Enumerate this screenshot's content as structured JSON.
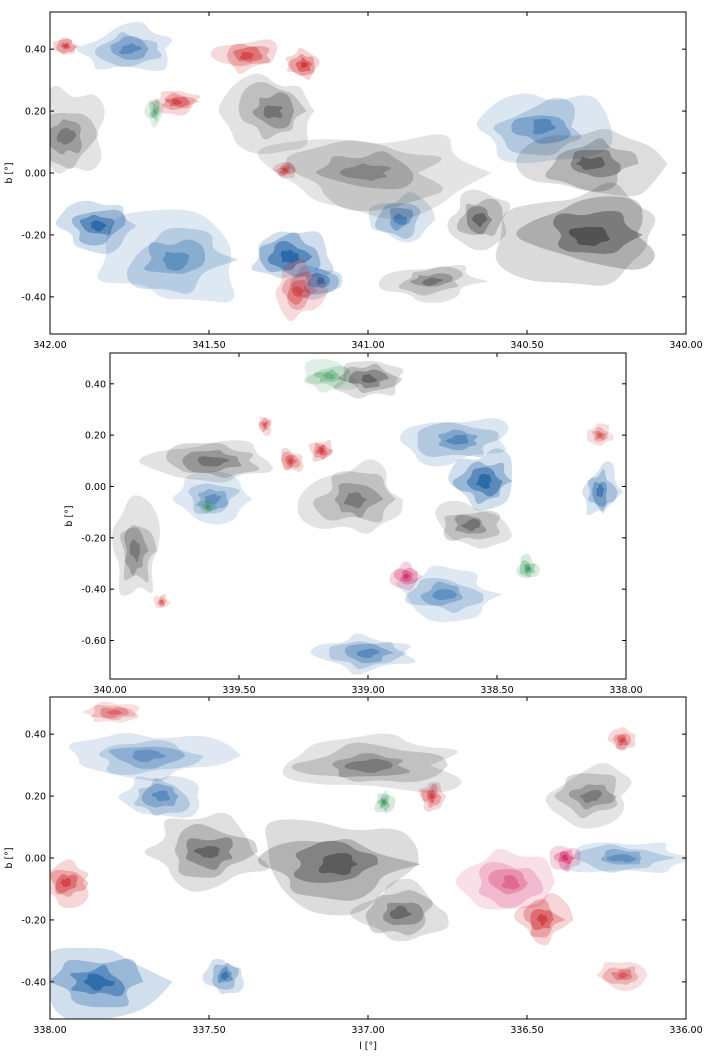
{
  "chart_data": [
    {
      "type": "heatmap",
      "panel": "top",
      "xlabel": "",
      "ylabel": "b [°]",
      "xlim": [
        342.0,
        340.0
      ],
      "ylim": [
        -0.52,
        0.52
      ],
      "xticks": [
        "342.00",
        "341.50",
        "341.00",
        "340.50",
        "340.00"
      ],
      "xtick_values": [
        342.0,
        341.5,
        341.0,
        340.5,
        340.0
      ],
      "yticks": [
        "0.40",
        "0.20",
        "0.00",
        "-0.20",
        "-0.40"
      ],
      "ytick_values": [
        0.4,
        0.2,
        0.0,
        -0.2,
        -0.4
      ],
      "colormaps": [
        "gray",
        "blue",
        "red",
        "green",
        "purple"
      ],
      "clumps": [
        {
          "cmap": "blue",
          "l": 341.85,
          "b": -0.17,
          "rl": 0.12,
          "rb": 0.08,
          "i": 0.9
        },
        {
          "cmap": "blue",
          "l": 341.25,
          "b": -0.27,
          "rl": 0.14,
          "rb": 0.1,
          "i": 0.95
        },
        {
          "cmap": "blue",
          "l": 341.15,
          "b": -0.35,
          "rl": 0.08,
          "rb": 0.06,
          "i": 0.8
        },
        {
          "cmap": "blue",
          "l": 341.75,
          "b": 0.4,
          "rl": 0.15,
          "rb": 0.08,
          "i": 0.4
        },
        {
          "cmap": "blue",
          "l": 340.45,
          "b": 0.15,
          "rl": 0.2,
          "rb": 0.12,
          "i": 0.45
        },
        {
          "cmap": "blue",
          "l": 340.9,
          "b": -0.15,
          "rl": 0.1,
          "rb": 0.08,
          "i": 0.5
        },
        {
          "cmap": "blue",
          "l": 341.6,
          "b": -0.28,
          "rl": 0.25,
          "rb": 0.15,
          "i": 0.35
        },
        {
          "cmap": "red",
          "l": 341.38,
          "b": 0.38,
          "rl": 0.1,
          "rb": 0.06,
          "i": 0.7
        },
        {
          "cmap": "red",
          "l": 341.2,
          "b": 0.35,
          "rl": 0.06,
          "rb": 0.05,
          "i": 0.9
        },
        {
          "cmap": "red",
          "l": 341.6,
          "b": 0.23,
          "rl": 0.08,
          "rb": 0.04,
          "i": 0.75
        },
        {
          "cmap": "red",
          "l": 341.26,
          "b": 0.01,
          "rl": 0.04,
          "rb": 0.03,
          "i": 0.7
        },
        {
          "cmap": "red",
          "l": 341.22,
          "b": -0.38,
          "rl": 0.08,
          "rb": 0.09,
          "i": 0.6
        },
        {
          "cmap": "red",
          "l": 341.95,
          "b": 0.41,
          "rl": 0.04,
          "rb": 0.03,
          "i": 0.8
        },
        {
          "cmap": "green",
          "l": 341.67,
          "b": 0.2,
          "rl": 0.03,
          "rb": 0.05,
          "i": 0.5
        },
        {
          "cmap": "gray",
          "l": 340.3,
          "b": -0.2,
          "rl": 0.3,
          "rb": 0.18,
          "i": 0.7
        },
        {
          "cmap": "gray",
          "l": 340.3,
          "b": 0.03,
          "rl": 0.2,
          "rb": 0.12,
          "i": 0.55
        },
        {
          "cmap": "gray",
          "l": 341.3,
          "b": 0.2,
          "rl": 0.15,
          "rb": 0.12,
          "i": 0.35
        },
        {
          "cmap": "gray",
          "l": 340.65,
          "b": -0.15,
          "rl": 0.1,
          "rb": 0.1,
          "i": 0.5
        },
        {
          "cmap": "gray",
          "l": 341.0,
          "b": 0.0,
          "rl": 0.35,
          "rb": 0.15,
          "i": 0.2
        },
        {
          "cmap": "gray",
          "l": 341.95,
          "b": 0.12,
          "rl": 0.12,
          "rb": 0.15,
          "i": 0.3
        },
        {
          "cmap": "gray",
          "l": 340.8,
          "b": -0.35,
          "rl": 0.15,
          "rb": 0.06,
          "i": 0.35
        }
      ]
    },
    {
      "type": "heatmap",
      "panel": "middle",
      "xlabel": "",
      "ylabel": "b [°]",
      "xlim": [
        340.0,
        338.0
      ],
      "ylim": [
        -0.75,
        0.52
      ],
      "xticks": [
        "340.00",
        "339.50",
        "339.00",
        "338.50",
        "338.00"
      ],
      "xtick_values": [
        340.0,
        339.5,
        339.0,
        338.5,
        338.0
      ],
      "yticks": [
        "0.40",
        "0.20",
        "0.00",
        "-0.20",
        "-0.40",
        "-0.60"
      ],
      "ytick_values": [
        0.4,
        0.2,
        0.0,
        -0.2,
        -0.4,
        -0.6
      ],
      "colormaps": [
        "gray",
        "blue",
        "red",
        "green",
        "purple"
      ],
      "clumps": [
        {
          "cmap": "blue",
          "l": 338.55,
          "b": 0.02,
          "rl": 0.15,
          "rb": 0.12,
          "i": 0.9
        },
        {
          "cmap": "blue",
          "l": 338.1,
          "b": -0.02,
          "rl": 0.08,
          "rb": 0.12,
          "i": 0.6
        },
        {
          "cmap": "blue",
          "l": 338.65,
          "b": 0.18,
          "rl": 0.2,
          "rb": 0.1,
          "i": 0.45
        },
        {
          "cmap": "blue",
          "l": 339.0,
          "b": -0.65,
          "rl": 0.2,
          "rb": 0.08,
          "i": 0.4
        },
        {
          "cmap": "blue",
          "l": 338.7,
          "b": -0.42,
          "rl": 0.2,
          "rb": 0.1,
          "i": 0.35
        },
        {
          "cmap": "blue",
          "l": 339.6,
          "b": -0.05,
          "rl": 0.15,
          "rb": 0.1,
          "i": 0.35
        },
        {
          "cmap": "red",
          "l": 339.18,
          "b": 0.14,
          "rl": 0.05,
          "rb": 0.05,
          "i": 0.8
        },
        {
          "cmap": "red",
          "l": 339.3,
          "b": 0.1,
          "rl": 0.05,
          "rb": 0.05,
          "i": 0.7
        },
        {
          "cmap": "red",
          "l": 339.4,
          "b": 0.24,
          "rl": 0.03,
          "rb": 0.04,
          "i": 0.6
        },
        {
          "cmap": "red",
          "l": 338.1,
          "b": 0.2,
          "rl": 0.05,
          "rb": 0.04,
          "i": 0.5
        },
        {
          "cmap": "red",
          "l": 339.8,
          "b": -0.45,
          "rl": 0.03,
          "rb": 0.03,
          "i": 0.5
        },
        {
          "cmap": "purple",
          "l": 338.85,
          "b": -0.35,
          "rl": 0.06,
          "rb": 0.05,
          "i": 0.85
        },
        {
          "cmap": "green",
          "l": 338.38,
          "b": -0.32,
          "rl": 0.04,
          "rb": 0.05,
          "i": 0.85
        },
        {
          "cmap": "green",
          "l": 339.15,
          "b": 0.43,
          "rl": 0.12,
          "rb": 0.06,
          "i": 0.4
        },
        {
          "cmap": "green",
          "l": 339.62,
          "b": -0.08,
          "rl": 0.03,
          "rb": 0.03,
          "i": 0.5
        },
        {
          "cmap": "gray",
          "l": 339.0,
          "b": 0.42,
          "rl": 0.15,
          "rb": 0.08,
          "i": 0.5
        },
        {
          "cmap": "gray",
          "l": 339.6,
          "b": 0.1,
          "rl": 0.25,
          "rb": 0.1,
          "i": 0.35
        },
        {
          "cmap": "gray",
          "l": 338.6,
          "b": -0.15,
          "rl": 0.15,
          "rb": 0.1,
          "i": 0.35
        },
        {
          "cmap": "gray",
          "l": 339.05,
          "b": -0.05,
          "rl": 0.2,
          "rb": 0.15,
          "i": 0.3
        },
        {
          "cmap": "gray",
          "l": 339.9,
          "b": -0.25,
          "rl": 0.1,
          "rb": 0.2,
          "i": 0.3
        }
      ]
    },
    {
      "type": "heatmap",
      "panel": "bottom",
      "xlabel": "l [°]",
      "ylabel": "b [°]",
      "xlim": [
        338.0,
        336.0
      ],
      "ylim": [
        -0.52,
        0.52
      ],
      "xticks": [
        "338.00",
        "337.50",
        "337.00",
        "336.50",
        "336.00"
      ],
      "xtick_values": [
        338.0,
        337.5,
        337.0,
        336.5,
        336.0
      ],
      "yticks": [
        "0.40",
        "0.20",
        "0.00",
        "-0.20",
        "-0.40"
      ],
      "ytick_values": [
        0.4,
        0.2,
        0.0,
        -0.2,
        -0.4
      ],
      "colormaps": [
        "gray",
        "blue",
        "red",
        "green",
        "purple"
      ],
      "clumps": [
        {
          "cmap": "blue",
          "l": 337.85,
          "b": -0.4,
          "rl": 0.2,
          "rb": 0.12,
          "i": 0.85
        },
        {
          "cmap": "blue",
          "l": 337.45,
          "b": -0.38,
          "rl": 0.06,
          "rb": 0.06,
          "i": 0.7
        },
        {
          "cmap": "blue",
          "l": 337.65,
          "b": 0.2,
          "rl": 0.12,
          "rb": 0.08,
          "i": 0.4
        },
        {
          "cmap": "blue",
          "l": 336.2,
          "b": 0.0,
          "rl": 0.2,
          "rb": 0.06,
          "i": 0.35
        },
        {
          "cmap": "blue",
          "l": 337.7,
          "b": 0.33,
          "rl": 0.25,
          "rb": 0.08,
          "i": 0.3
        },
        {
          "cmap": "red",
          "l": 337.95,
          "b": -0.08,
          "rl": 0.08,
          "rb": 0.07,
          "i": 0.75
        },
        {
          "cmap": "red",
          "l": 336.8,
          "b": 0.2,
          "rl": 0.04,
          "rb": 0.05,
          "i": 0.8
        },
        {
          "cmap": "red",
          "l": 336.45,
          "b": -0.2,
          "rl": 0.08,
          "rb": 0.08,
          "i": 0.8
        },
        {
          "cmap": "red",
          "l": 336.2,
          "b": 0.38,
          "rl": 0.04,
          "rb": 0.04,
          "i": 0.7
        },
        {
          "cmap": "red",
          "l": 336.2,
          "b": -0.38,
          "rl": 0.08,
          "rb": 0.05,
          "i": 0.5
        },
        {
          "cmap": "red",
          "l": 337.8,
          "b": 0.47,
          "rl": 0.1,
          "rb": 0.04,
          "i": 0.4
        },
        {
          "cmap": "purple",
          "l": 336.38,
          "b": 0.0,
          "rl": 0.05,
          "rb": 0.05,
          "i": 0.85
        },
        {
          "cmap": "purple",
          "l": 336.55,
          "b": -0.08,
          "rl": 0.15,
          "rb": 0.1,
          "i": 0.35
        },
        {
          "cmap": "green",
          "l": 336.95,
          "b": 0.18,
          "rl": 0.03,
          "rb": 0.04,
          "i": 0.8
        },
        {
          "cmap": "gray",
          "l": 337.1,
          "b": -0.02,
          "rl": 0.3,
          "rb": 0.15,
          "i": 0.6
        },
        {
          "cmap": "gray",
          "l": 337.5,
          "b": 0.02,
          "rl": 0.2,
          "rb": 0.12,
          "i": 0.5
        },
        {
          "cmap": "gray",
          "l": 336.9,
          "b": -0.18,
          "rl": 0.15,
          "rb": 0.1,
          "i": 0.45
        },
        {
          "cmap": "gray",
          "l": 337.0,
          "b": 0.3,
          "rl": 0.3,
          "rb": 0.1,
          "i": 0.3
        },
        {
          "cmap": "gray",
          "l": 336.3,
          "b": 0.2,
          "rl": 0.15,
          "rb": 0.1,
          "i": 0.3
        }
      ]
    }
  ],
  "colormap_colors": {
    "gray": "#252525",
    "blue": "#08519c",
    "red": "#cb181d",
    "green": "#238b45",
    "purple": "#ce1256"
  }
}
